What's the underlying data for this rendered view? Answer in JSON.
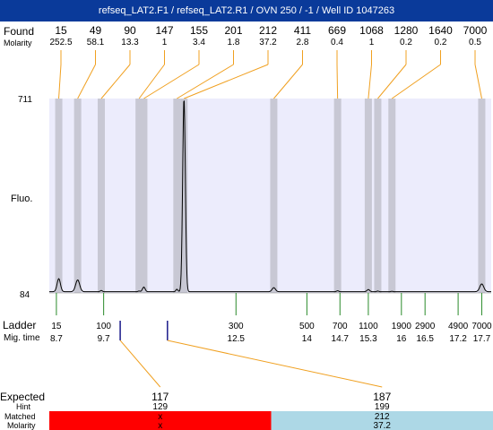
{
  "window": {
    "title": "refseq_LAT2.F1 / refseq_LAT2.R1 / OVN 250 / -1 / Well ID 1047263"
  },
  "colors": {
    "plot_bg": "#ececfc",
    "band": "#c8c8d4",
    "trace": "#000000",
    "ladder_tick": "#2a8a2a",
    "link_line": "#f0a020",
    "matched_none": "#ff0000",
    "matched_ok": "#add8e6"
  },
  "labels": {
    "found": "Found",
    "molarity": "Molarity",
    "fluo": "Fluo.",
    "ladder": "Ladder",
    "mig_time": "Mig. time",
    "expected": "Expected",
    "hint": "Hint",
    "matched": "Matched",
    "molarity_row": "Molarity"
  },
  "chart_data": {
    "type": "line",
    "title": "refseq_LAT2.F1 / refseq_LAT2.R1 / OVN 250 / -1 / Well ID 1047263",
    "ylabel": "Fluo.",
    "ylim": [
      84,
      711
    ],
    "y_ticks": [
      "711",
      "84"
    ],
    "found_peaks": [
      {
        "size": "15",
        "molarity": "252.5",
        "time": 8.75
      },
      {
        "size": "49",
        "molarity": "58.1",
        "time": 9.15
      },
      {
        "size": "90",
        "molarity": "13.3",
        "time": 9.65
      },
      {
        "size": "147",
        "molarity": "1",
        "time": 10.45
      },
      {
        "size": "155",
        "molarity": "3.4",
        "time": 10.55
      },
      {
        "size": "201",
        "molarity": "1.8",
        "time": 11.25
      },
      {
        "size": "212",
        "molarity": "37.2",
        "time": 11.4
      },
      {
        "size": "411",
        "molarity": "2.8",
        "time": 13.3
      },
      {
        "size": "669",
        "molarity": "0.4",
        "time": 14.65
      },
      {
        "size": "1068",
        "molarity": "1",
        "time": 15.3
      },
      {
        "size": "1280",
        "molarity": "0.2",
        "time": 15.5
      },
      {
        "size": "1640",
        "molarity": "0.2",
        "time": 15.8
      },
      {
        "size": "7000",
        "molarity": "0.5",
        "time": 17.7
      }
    ],
    "ladder": [
      {
        "size": "15",
        "time": "8.7"
      },
      {
        "size": "100",
        "time": "9.7"
      },
      {
        "size": "300",
        "time": "12.5"
      },
      {
        "size": "500",
        "time": "14"
      },
      {
        "size": "700",
        "time": "14.7"
      },
      {
        "size": "1100",
        "time": "15.3"
      },
      {
        "size": "1900",
        "time": "16"
      },
      {
        "size": "2900",
        "time": "16.5"
      },
      {
        "size": "4900",
        "time": "17.2"
      },
      {
        "size": "7000",
        "time": "17.7"
      }
    ],
    "expected": [
      {
        "expected": "117",
        "hint": "129",
        "matched": "x",
        "molarity": "x",
        "time": 10.05,
        "status": "none"
      },
      {
        "expected": "187",
        "hint": "199",
        "matched": "212",
        "molarity": "37.2",
        "time": 11.05,
        "status": "ok"
      }
    ],
    "trace": {
      "baseline": 88,
      "peaks": [
        {
          "time": 8.75,
          "height": 130,
          "width": 0.05
        },
        {
          "time": 9.15,
          "height": 126,
          "width": 0.06
        },
        {
          "time": 9.65,
          "height": 92,
          "width": 0.03
        },
        {
          "time": 10.45,
          "height": 90,
          "width": 0.03
        },
        {
          "time": 10.55,
          "height": 103,
          "width": 0.04
        },
        {
          "time": 11.25,
          "height": 96,
          "width": 0.03
        },
        {
          "time": 11.4,
          "height": 711,
          "width": 0.04
        },
        {
          "time": 13.3,
          "height": 101,
          "width": 0.05
        },
        {
          "time": 14.65,
          "height": 91,
          "width": 0.03
        },
        {
          "time": 15.3,
          "height": 95,
          "width": 0.04
        },
        {
          "time": 15.5,
          "height": 90,
          "width": 0.03
        },
        {
          "time": 15.8,
          "height": 89,
          "width": 0.03
        },
        {
          "time": 17.7,
          "height": 113,
          "width": 0.06
        }
      ]
    }
  }
}
